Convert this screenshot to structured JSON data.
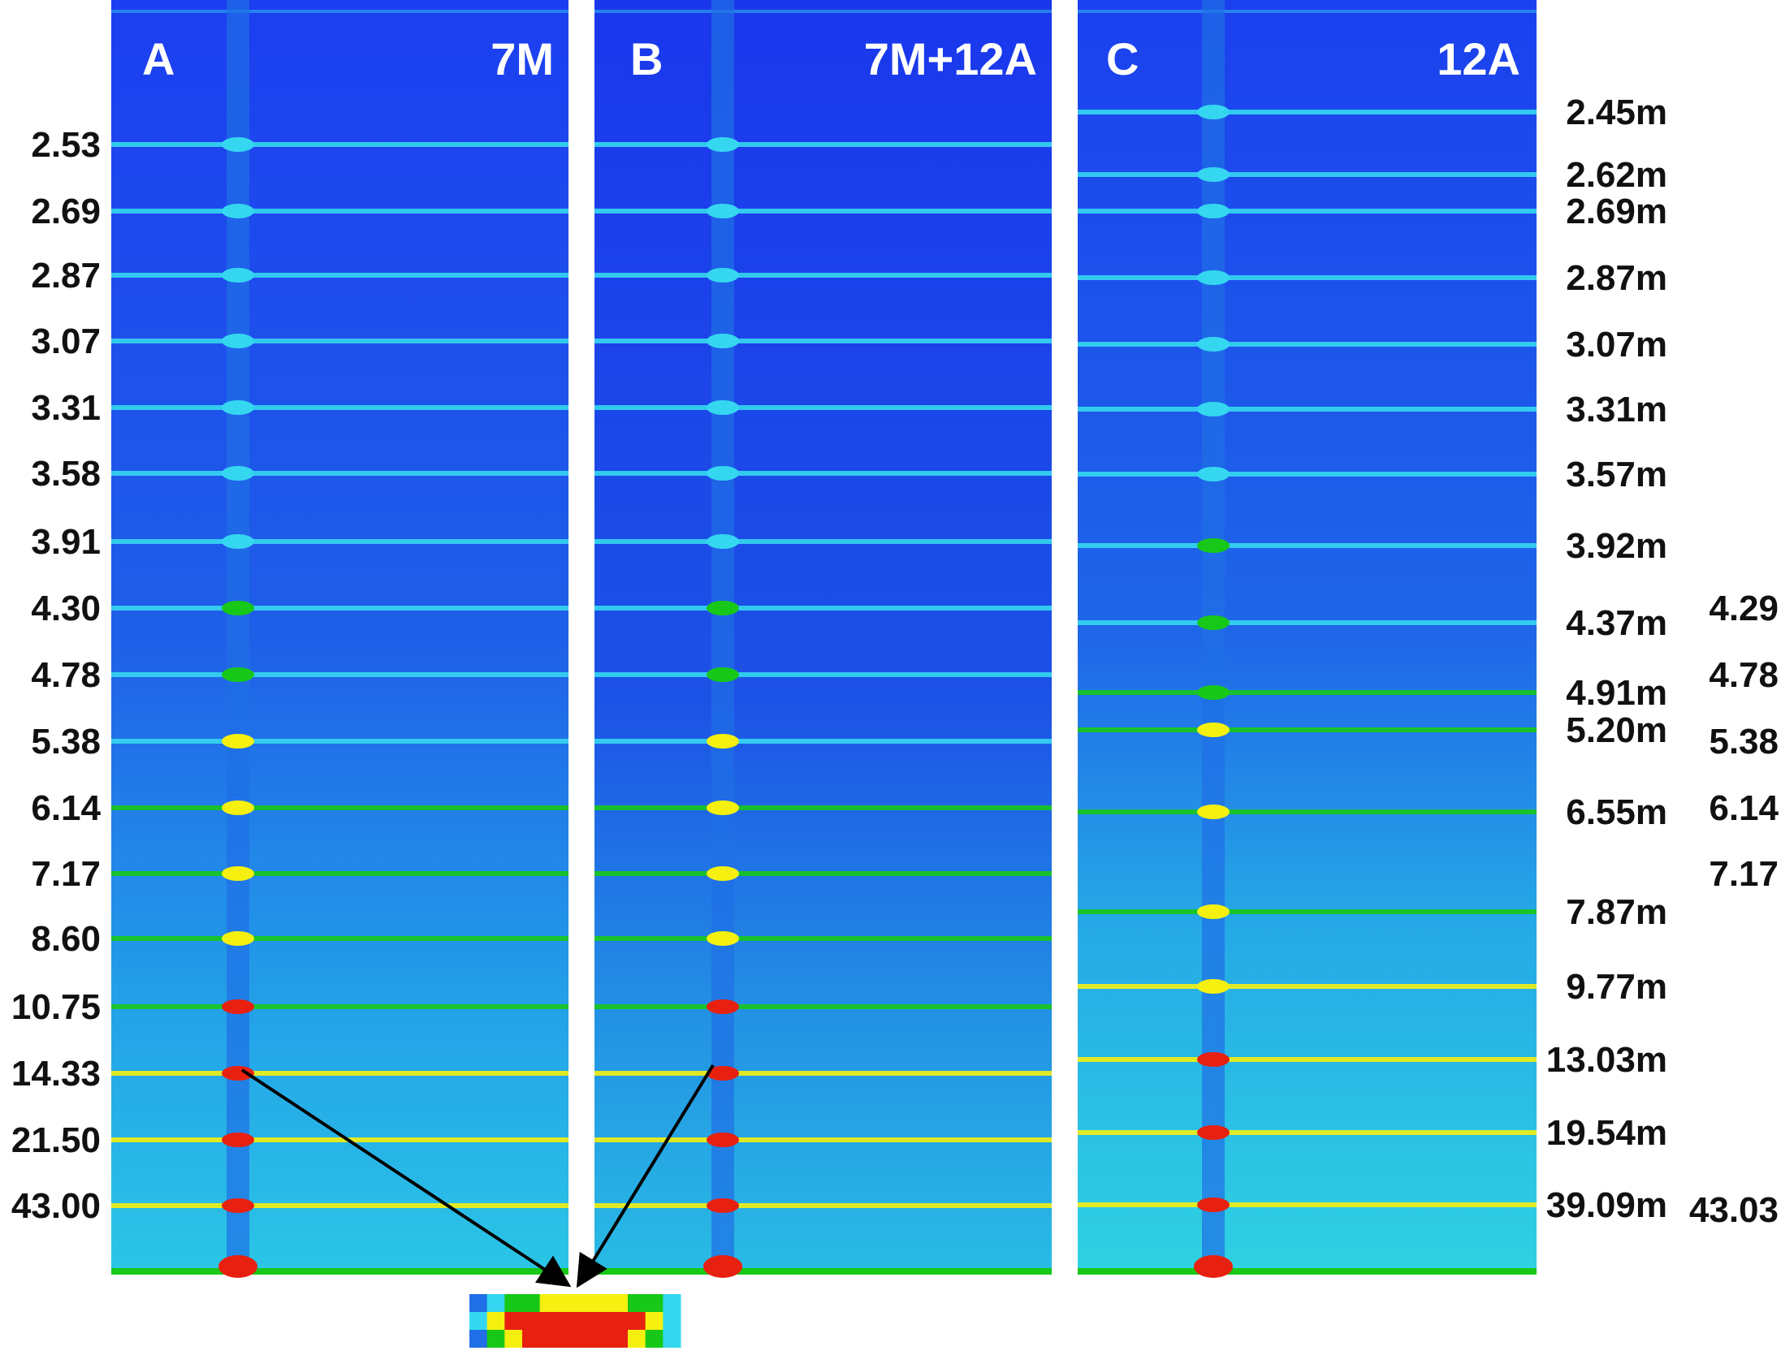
{
  "colors": {
    "background": "#ffffff",
    "panel_deep": "#1a3fe8",
    "panel_mid": "#1f6fe6",
    "band_cyan": "#35d7f0",
    "band_green": "#18c818",
    "band_yellow": "#f5f010",
    "band_red": "#e82010",
    "label_text": "#111111",
    "panel_text": "#ffffff",
    "arrow": "#000000"
  },
  "panels": [
    {
      "id": "A",
      "letter": "A",
      "tag": "7M"
    },
    {
      "id": "B",
      "letter": "B",
      "tag": "7M+12A"
    },
    {
      "id": "C",
      "letter": "C",
      "tag": "12A"
    }
  ],
  "left_labels": [
    "2.53",
    "2.69",
    "2.87",
    "3.07",
    "3.31",
    "3.58",
    "3.91",
    "4.30",
    "4.78",
    "5.38",
    "6.14",
    "7.17",
    "8.60",
    "10.75",
    "14.33",
    "21.50",
    "43.00"
  ],
  "mid_labels": [
    "2.45m",
    "2.62m",
    "2.69m",
    "2.87m",
    "3.07m",
    "3.31m",
    "3.57m",
    "3.92m",
    "4.37m",
    "4.91m",
    "5.20m",
    "6.55m",
    "7.87m",
    "9.77m",
    "13.03m",
    "19.54m",
    "39.09m"
  ],
  "right_labels": [
    "4.29",
    "4.78",
    "5.38",
    "6.14",
    "7.17",
    "43.03"
  ],
  "inset": {
    "icon": "colormap-inset-swatch",
    "rows": 3
  }
}
